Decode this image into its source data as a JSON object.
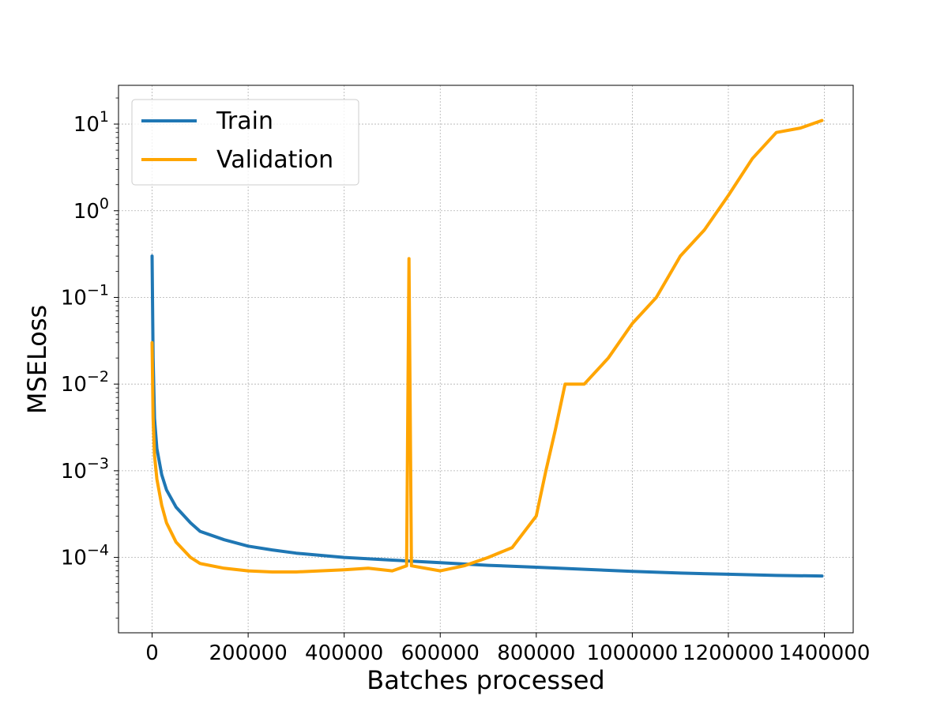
{
  "chart_data": {
    "type": "line",
    "title": "",
    "xlabel": "Batches processed",
    "ylabel": "MSELoss",
    "xlim": [
      -70000,
      1460000
    ],
    "ylim": [
      1.35e-05,
      28
    ],
    "yscale": "log",
    "grid": true,
    "legend_position": "upper-left",
    "x_ticks": [
      {
        "value": 0,
        "label": "0"
      },
      {
        "value": 200000,
        "label": "200000"
      },
      {
        "value": 400000,
        "label": "400000"
      },
      {
        "value": 600000,
        "label": "600000"
      },
      {
        "value": 800000,
        "label": "800000"
      },
      {
        "value": 1000000,
        "label": "1000000"
      },
      {
        "value": 1200000,
        "label": "1200000"
      },
      {
        "value": 1400000,
        "label": "1400000"
      }
    ],
    "y_ticks": [
      {
        "value": 0.0001,
        "base": "10",
        "exp": "−4"
      },
      {
        "value": 0.001,
        "base": "10",
        "exp": "−3"
      },
      {
        "value": 0.01,
        "base": "10",
        "exp": "−2"
      },
      {
        "value": 0.1,
        "base": "10",
        "exp": "−1"
      },
      {
        "value": 1,
        "base": "10",
        "exp": "0"
      },
      {
        "value": 10,
        "base": "10",
        "exp": "1"
      }
    ],
    "series": [
      {
        "name": "Train",
        "color": "#1f77b4",
        "x": [
          0,
          2000,
          5000,
          10000,
          20000,
          30000,
          50000,
          80000,
          100000,
          150000,
          200000,
          250000,
          300000,
          400000,
          500000,
          600000,
          700000,
          800000,
          900000,
          1000000,
          1100000,
          1200000,
          1300000,
          1395000
        ],
        "y": [
          0.3,
          0.02,
          0.004,
          0.0018,
          0.0009,
          0.0006,
          0.00038,
          0.00025,
          0.0002,
          0.00016,
          0.000135,
          0.000122,
          0.000112,
          0.0001,
          9.3e-05,
          8.7e-05,
          8.1e-05,
          7.7e-05,
          7.3e-05,
          6.9e-05,
          6.6e-05,
          6.4e-05,
          6.2e-05,
          6.1e-05
        ]
      },
      {
        "name": "Validation",
        "color": "#ffa500",
        "x": [
          0,
          2000,
          5000,
          10000,
          20000,
          30000,
          50000,
          80000,
          100000,
          150000,
          200000,
          250000,
          300000,
          350000,
          400000,
          450000,
          500000,
          530000,
          535000,
          540000,
          600000,
          650000,
          700000,
          750000,
          800000,
          820000,
          840000,
          860000,
          900000,
          950000,
          1000000,
          1050000,
          1100000,
          1150000,
          1200000,
          1250000,
          1300000,
          1350000,
          1395000
        ],
        "y": [
          0.03,
          0.004,
          0.0015,
          0.0008,
          0.0004,
          0.00025,
          0.00015,
          0.0001,
          8.5e-05,
          7.5e-05,
          7e-05,
          6.8e-05,
          6.8e-05,
          7e-05,
          7.2e-05,
          7.5e-05,
          7e-05,
          8e-05,
          0.28,
          8e-05,
          7e-05,
          8e-05,
          0.0001,
          0.00013,
          0.0003,
          0.001,
          0.003,
          0.01,
          0.01,
          0.02,
          0.05,
          0.1,
          0.3,
          0.6,
          1.5,
          4,
          8,
          9,
          11
        ]
      }
    ]
  }
}
